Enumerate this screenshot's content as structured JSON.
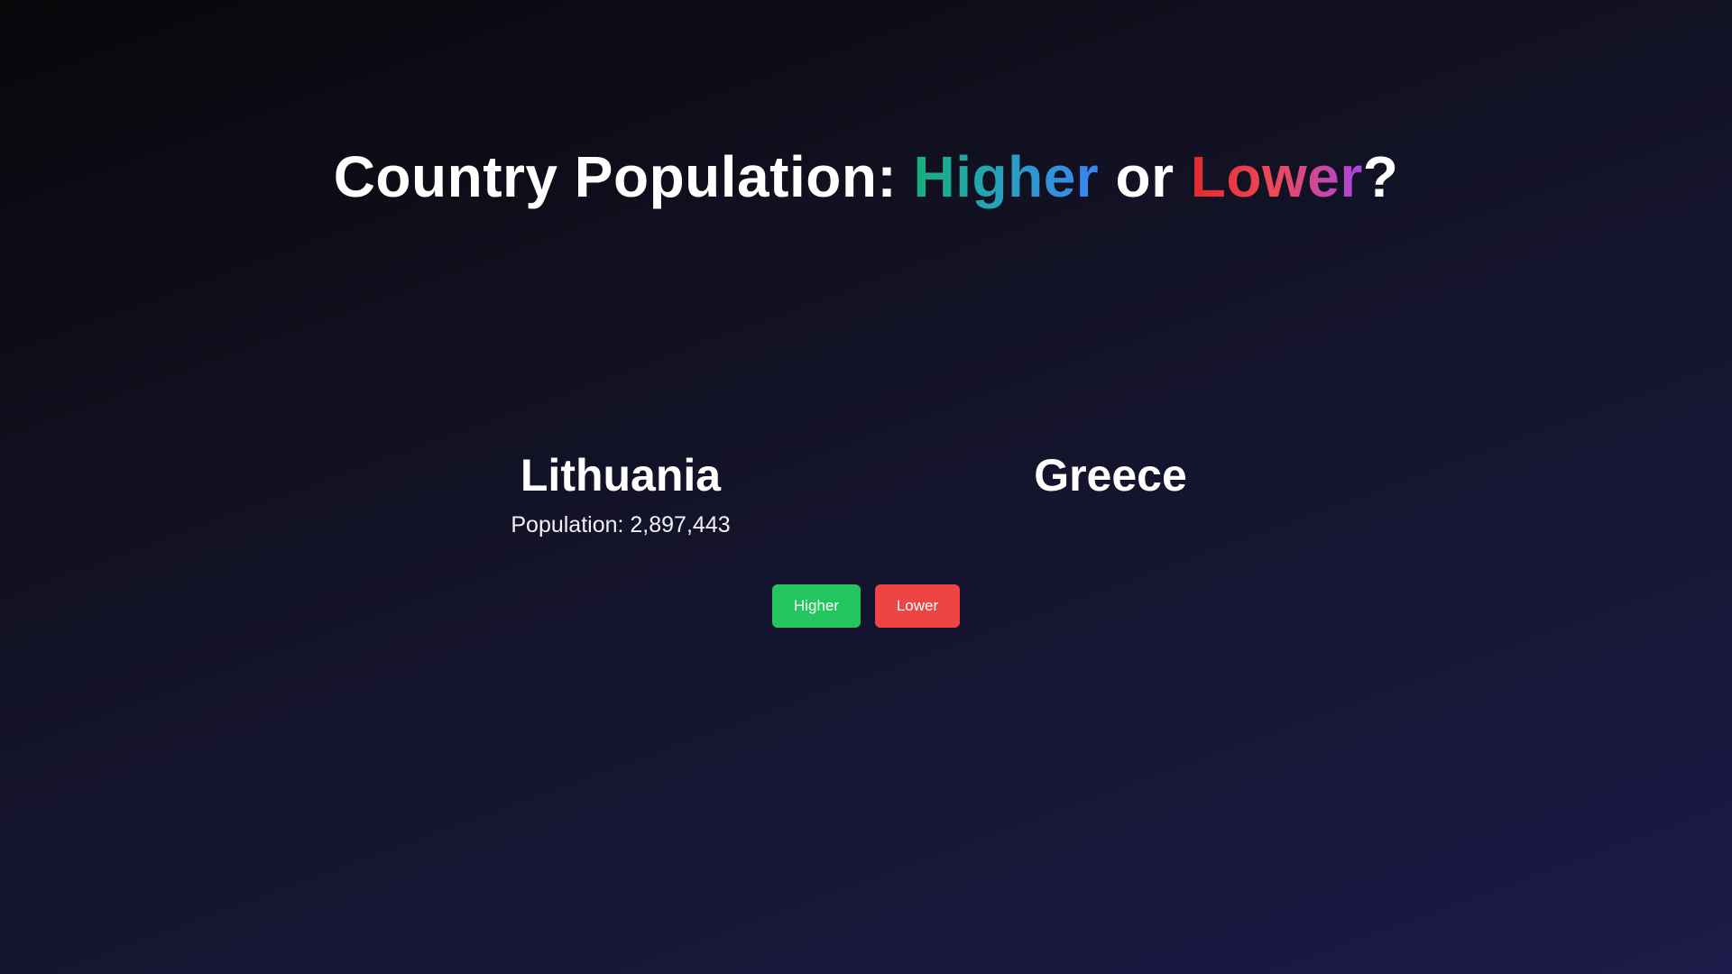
{
  "title": {
    "prefix": "Country Population: ",
    "higher_word": "Higher",
    "middle": " or ",
    "lower_word": "Lower",
    "suffix": "?"
  },
  "left_country": {
    "name": "Lithuania",
    "population_text": "Population: 2,897,443"
  },
  "right_country": {
    "name": "Greece"
  },
  "buttons": {
    "higher_label": "Higher",
    "lower_label": "Lower"
  },
  "colors": {
    "higher_button": "#22c55e",
    "lower_button": "#ef4444"
  }
}
